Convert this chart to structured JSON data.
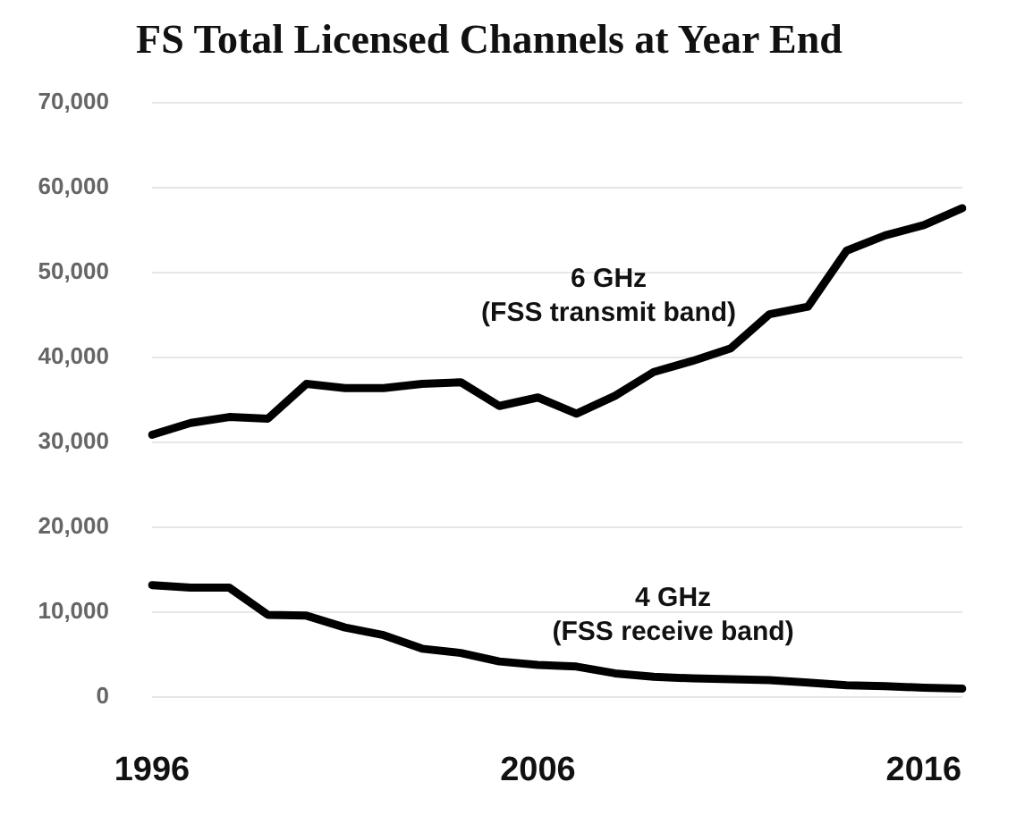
{
  "chart_data": {
    "type": "line",
    "title": "FS Total Licensed Channels at Year End",
    "categories": [
      "1996",
      null,
      null,
      null,
      null,
      null,
      null,
      null,
      null,
      null,
      "2006",
      null,
      null,
      null,
      null,
      null,
      null,
      null,
      null,
      null,
      "2016",
      null
    ],
    "series": [
      {
        "name": "6 GHz\n(FSS transmit band)",
        "color": "#000000",
        "values": [
          30900,
          32300,
          33000,
          32800,
          36900,
          36400,
          36400,
          36900,
          37100,
          34300,
          35300,
          33400,
          35500,
          38300,
          39600,
          41100,
          45100,
          46000,
          52600,
          54400,
          55600,
          57600
        ]
      },
      {
        "name": "4 GHz\n(FSS receive band)",
        "color": "#000000",
        "values": [
          13200,
          12900,
          12900,
          9700,
          9600,
          8200,
          7300,
          5700,
          5200,
          4200,
          3800,
          3600,
          2800,
          2400,
          2200,
          2100,
          2000,
          1700,
          1400,
          1300,
          1100,
          1000
        ]
      }
    ],
    "ylim": [
      0,
      70000
    ],
    "yticks": [
      0,
      {
        "value": 10000,
        "label": "10,000"
      },
      {
        "value": 20000,
        "label": "20,000"
      },
      {
        "value": 30000,
        "label": "30,000"
      },
      {
        "value": 40000,
        "label": "40,000"
      },
      {
        "value": 50000,
        "label": "50,000"
      },
      {
        "value": 60000,
        "label": "60,000"
      },
      {
        "value": 70000,
        "label": "70,000"
      }
    ],
    "grid": "y",
    "legend": false,
    "marker": "none",
    "line_style": "solid"
  }
}
